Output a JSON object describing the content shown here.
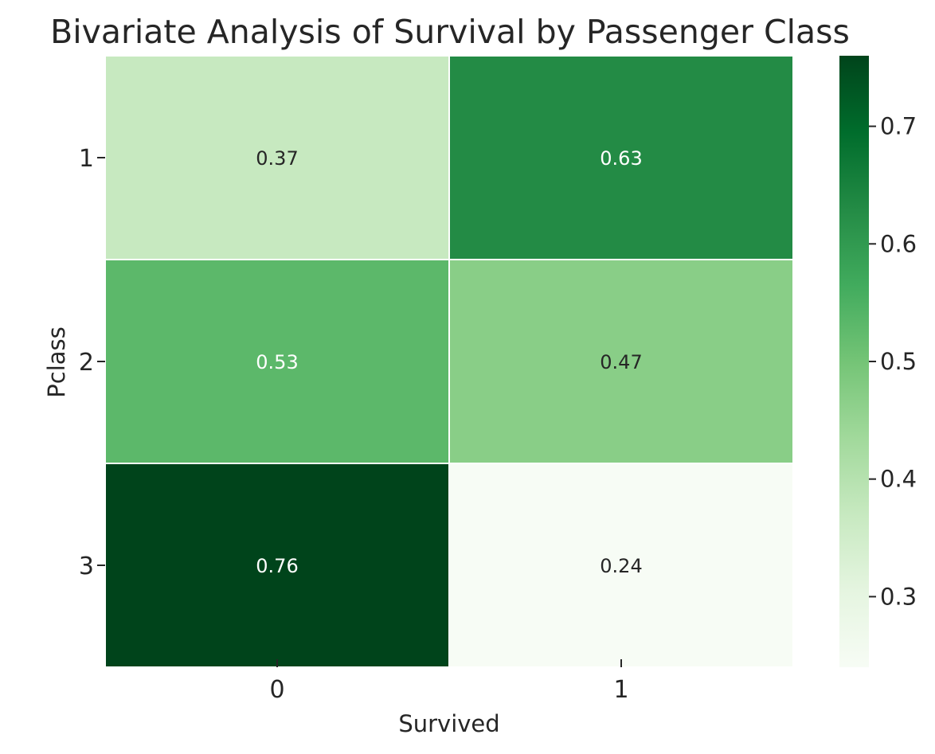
{
  "chart_data": {
    "type": "heatmap",
    "title": "Bivariate Analysis of Survival by Passenger Class",
    "xlabel": "Survived",
    "ylabel": "Pclass",
    "x_categories": [
      "0",
      "1"
    ],
    "y_categories": [
      "1",
      "2",
      "3"
    ],
    "values": [
      [
        0.37,
        0.63
      ],
      [
        0.53,
        0.47
      ],
      [
        0.76,
        0.24
      ]
    ],
    "value_labels": [
      [
        "0.37",
        "0.63"
      ],
      [
        "0.53",
        "0.47"
      ],
      [
        "0.76",
        "0.24"
      ]
    ],
    "colormap": "Greens",
    "color_range": [
      0.24,
      0.76
    ],
    "colorbar": {
      "ticks": [
        0.3,
        0.4,
        0.5,
        0.6,
        0.7
      ],
      "tick_labels": [
        "0.3",
        "0.4",
        "0.5",
        "0.6",
        "0.7"
      ]
    },
    "annotate": true,
    "grid": false
  }
}
